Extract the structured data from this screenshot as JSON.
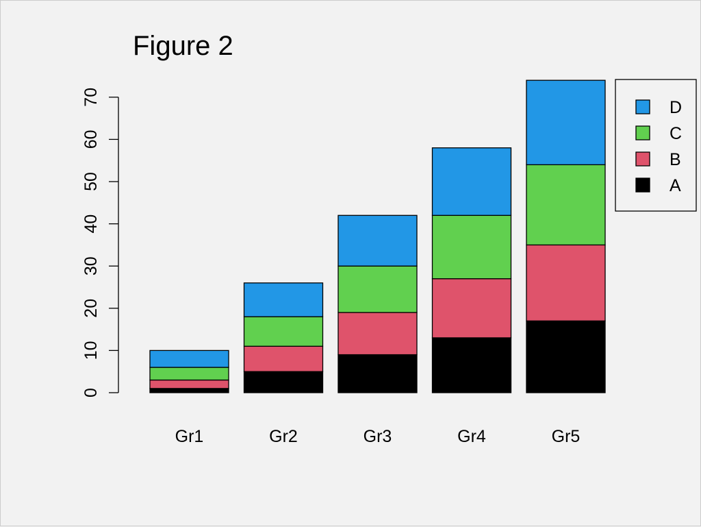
{
  "chart_data": {
    "type": "bar",
    "stacked": true,
    "title": "Figure 2",
    "xlabel": "",
    "ylabel": "",
    "categories": [
      "Gr1",
      "Gr2",
      "Gr3",
      "Gr4",
      "Gr5"
    ],
    "series": [
      {
        "name": "A",
        "color": "#000000",
        "values": [
          1,
          5,
          9,
          13,
          17
        ]
      },
      {
        "name": "B",
        "color": "#DF536B",
        "values": [
          2,
          6,
          10,
          14,
          18
        ]
      },
      {
        "name": "C",
        "color": "#61D04F",
        "values": [
          3,
          7,
          11,
          15,
          19
        ]
      },
      {
        "name": "D",
        "color": "#2297E6",
        "values": [
          4,
          8,
          12,
          16,
          20
        ]
      }
    ],
    "ylim": [
      0,
      74
    ],
    "yticks": [
      0,
      10,
      20,
      30,
      40,
      50,
      60,
      70
    ],
    "grid": false,
    "legend": {
      "position": "right",
      "order": [
        "D",
        "C",
        "B",
        "A"
      ]
    }
  }
}
